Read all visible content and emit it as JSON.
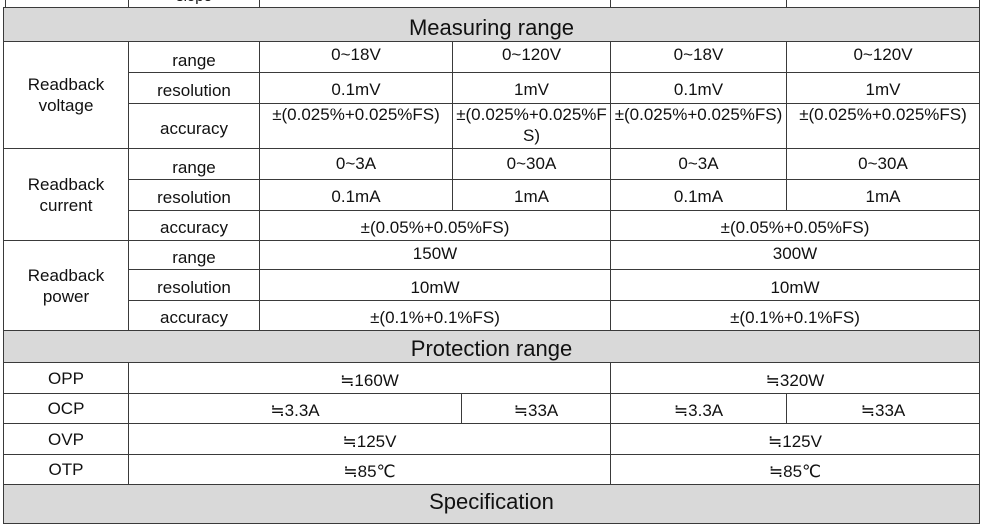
{
  "top_partial": {
    "label": "slope"
  },
  "measuring": {
    "title": "Measuring range",
    "voltage": {
      "label": "Readback voltage",
      "range_label": "range",
      "resolution_label": "resolution",
      "accuracy_label": "accuracy",
      "range": [
        "0~18V",
        "0~120V",
        "0~18V",
        "0~120V"
      ],
      "resolution": [
        "0.1mV",
        "1mV",
        "0.1mV",
        "1mV"
      ],
      "accuracy": [
        "±(0.025%+0.025%FS)",
        "±(0.025%+0.025%FS)",
        "±(0.025%+0.025%FS)",
        "±(0.025%+0.025%FS)"
      ]
    },
    "current": {
      "label": "Readback current",
      "range_label": "range",
      "resolution_label": "resolution",
      "accuracy_label": "accuracy",
      "range": [
        "0~3A",
        "0~30A",
        "0~3A",
        "0~30A"
      ],
      "resolution": [
        "0.1mA",
        "1mA",
        "0.1mA",
        "1mA"
      ],
      "accuracy": [
        "±(0.05%+0.05%FS)",
        "±(0.05%+0.05%FS)"
      ]
    },
    "power": {
      "label": "Readback power",
      "range_label": "range",
      "resolution_label": "resolution",
      "accuracy_label": "accuracy",
      "range": [
        "150W",
        "300W"
      ],
      "resolution": [
        "10mW",
        "10mW"
      ],
      "accuracy": [
        "±(0.1%+0.1%FS)",
        "±(0.1%+0.1%FS)"
      ]
    }
  },
  "protection": {
    "title": "Protection range",
    "opp": {
      "label": "OPP",
      "values": [
        "≒160W",
        "≒320W"
      ]
    },
    "ocp": {
      "label": "OCP",
      "values": [
        "≒3.3A",
        "≒33A",
        "≒3.3A",
        "≒33A"
      ]
    },
    "ovp": {
      "label": "OVP",
      "values": [
        "≒125V",
        "≒125V"
      ]
    },
    "otp": {
      "label": "OTP",
      "values": [
        "≒85℃",
        "≒85℃"
      ]
    }
  },
  "specification": {
    "title": "Specification"
  }
}
